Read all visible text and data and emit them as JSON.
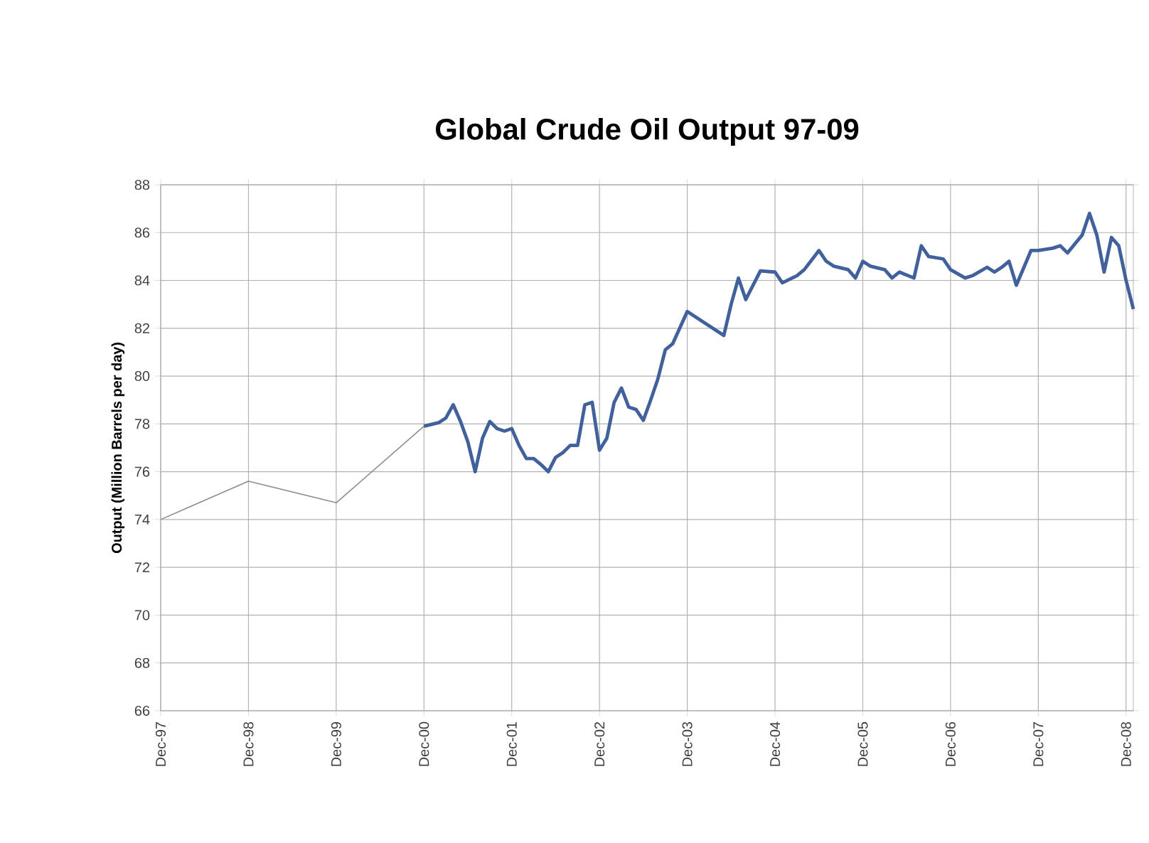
{
  "chart_data": {
    "type": "line",
    "title": "Global Crude Oil Output 97-09",
    "ylabel": "Output (Million Barrels per day)",
    "xlim": [
      "1997-12",
      "2009-01"
    ],
    "ylim": [
      66,
      88
    ],
    "yticks": [
      66,
      68,
      70,
      72,
      74,
      76,
      78,
      80,
      82,
      84,
      86,
      88
    ],
    "xticks": [
      {
        "value": "1997-12",
        "label": "Dec-97"
      },
      {
        "value": "1998-12",
        "label": "Dec-98"
      },
      {
        "value": "1999-12",
        "label": "Dec-99"
      },
      {
        "value": "2000-12",
        "label": "Dec-00"
      },
      {
        "value": "2001-12",
        "label": "Dec-01"
      },
      {
        "value": "2002-12",
        "label": "Dec-02"
      },
      {
        "value": "2003-12",
        "label": "Dec-03"
      },
      {
        "value": "2004-12",
        "label": "Dec-04"
      },
      {
        "value": "2005-12",
        "label": "Dec-05"
      },
      {
        "value": "2006-12",
        "label": "Dec-06"
      },
      {
        "value": "2007-12",
        "label": "Dec-07"
      },
      {
        "value": "2008-12",
        "label": "Dec-08"
      }
    ],
    "grid": true,
    "series": [
      {
        "color": "#8c8c8c",
        "x": [
          "1997-12",
          "1998-12",
          "1999-12",
          "2000-12"
        ],
        "values": [
          74.0,
          75.6,
          74.7,
          77.9
        ]
      },
      {
        "color": "#41619c",
        "x": [
          "2000-12",
          "2001-02",
          "2001-03",
          "2001-04",
          "2001-05",
          "2001-06",
          "2001-07",
          "2001-08",
          "2001-09",
          "2001-10",
          "2001-11",
          "2001-12",
          "2002-01",
          "2002-02",
          "2002-03",
          "2002-04",
          "2002-05",
          "2002-06",
          "2002-07",
          "2002-08",
          "2002-09",
          "2002-10",
          "2002-11",
          "2002-12",
          "2003-01",
          "2003-02",
          "2003-03",
          "2003-04",
          "2003-05",
          "2003-06",
          "2003-07",
          "2003-08",
          "2003-09",
          "2003-10",
          "2003-12",
          "2004-02",
          "2004-05",
          "2004-06",
          "2004-07",
          "2004-08",
          "2004-10",
          "2004-12",
          "2005-01",
          "2005-03",
          "2005-04",
          "2005-06",
          "2005-07",
          "2005-08",
          "2005-10",
          "2005-11",
          "2005-12",
          "2006-01",
          "2006-03",
          "2006-04",
          "2006-05",
          "2006-07",
          "2006-08",
          "2006-09",
          "2006-11",
          "2006-12",
          "2007-02",
          "2007-03",
          "2007-05",
          "2007-06",
          "2007-07",
          "2007-08",
          "2007-09",
          "2007-11",
          "2007-12",
          "2008-02",
          "2008-03",
          "2008-04",
          "2008-06",
          "2008-07",
          "2008-08",
          "2008-09",
          "2008-10",
          "2008-11",
          "2008-12",
          "2009-01"
        ],
        "values": [
          77.9,
          78.05,
          78.25,
          78.8,
          78.1,
          77.25,
          76.0,
          77.4,
          78.1,
          77.8,
          77.7,
          77.8,
          77.1,
          76.55,
          76.55,
          76.3,
          76.0,
          76.6,
          76.8,
          77.1,
          77.1,
          78.8,
          78.9,
          76.9,
          77.4,
          78.9,
          79.5,
          78.7,
          78.6,
          78.15,
          79.0,
          79.9,
          81.1,
          81.35,
          82.7,
          82.3,
          81.7,
          83.0,
          84.1,
          83.2,
          84.4,
          84.35,
          83.9,
          84.2,
          84.45,
          85.25,
          84.8,
          84.6,
          84.45,
          84.1,
          84.8,
          84.6,
          84.45,
          84.1,
          84.35,
          84.1,
          85.45,
          85.0,
          84.9,
          84.45,
          84.1,
          84.2,
          84.55,
          84.35,
          84.55,
          84.8,
          83.8,
          85.25,
          85.25,
          85.35,
          85.45,
          85.15,
          85.9,
          86.8,
          85.9,
          84.35,
          85.8,
          85.45,
          84.0,
          82.8
        ]
      }
    ]
  }
}
